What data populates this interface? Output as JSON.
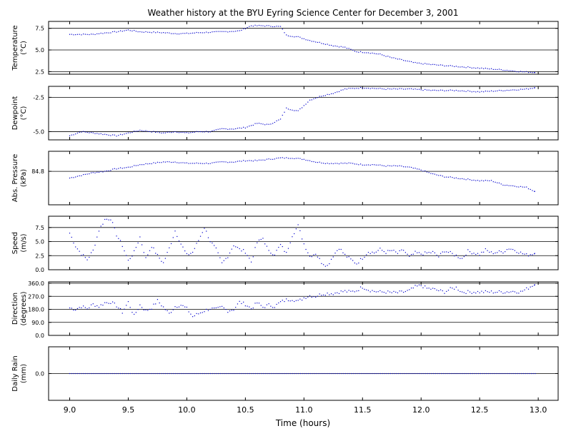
{
  "chart_data": {
    "type": "scatter",
    "title": "Weather history at the BYU Eyring Science Center for December 3, 2001",
    "xlabel": "Time (hours)",
    "xlim": [
      8.82,
      13.17
    ],
    "x_ticks": [
      9.0,
      9.5,
      10.0,
      10.5,
      11.0,
      11.5,
      12.0,
      12.5,
      13.0
    ],
    "x_tick_labels": [
      "9.0",
      "9.5",
      "10.0",
      "10.5",
      "11.0",
      "11.5",
      "12.0",
      "12.5",
      "13.0"
    ],
    "marker_color": "#0000cc",
    "grid": "horizontal lines at y ticks",
    "panels": [
      {
        "id": "temperature",
        "ylabel_lines": [
          "Temperature",
          "(°C)"
        ],
        "ylim": [
          2.2,
          8.3
        ],
        "yticks": [
          2.5,
          5.0,
          7.5
        ],
        "ytick_labels": [
          "2.5",
          "5.0",
          "7.5"
        ],
        "points": [
          [
            9.0,
            6.8
          ],
          [
            9.2,
            6.8
          ],
          [
            9.25,
            6.9
          ],
          [
            9.4,
            7.1
          ],
          [
            9.5,
            7.3
          ],
          [
            9.6,
            7.1
          ],
          [
            9.8,
            7.0
          ],
          [
            9.9,
            6.9
          ],
          [
            10.0,
            6.9
          ],
          [
            10.1,
            7.0
          ],
          [
            10.3,
            7.1
          ],
          [
            10.45,
            7.2
          ],
          [
            10.55,
            7.8
          ],
          [
            10.65,
            7.8
          ],
          [
            10.8,
            7.7
          ],
          [
            10.85,
            6.7
          ],
          [
            10.95,
            6.5
          ],
          [
            11.05,
            6.1
          ],
          [
            11.15,
            5.8
          ],
          [
            11.25,
            5.5
          ],
          [
            11.35,
            5.3
          ],
          [
            11.45,
            4.8
          ],
          [
            11.55,
            4.7
          ],
          [
            11.65,
            4.5
          ],
          [
            11.75,
            4.1
          ],
          [
            11.85,
            3.8
          ],
          [
            11.95,
            3.5
          ],
          [
            12.1,
            3.3
          ],
          [
            12.3,
            3.1
          ],
          [
            12.5,
            2.9
          ],
          [
            12.7,
            2.7
          ],
          [
            12.85,
            2.5
          ],
          [
            12.97,
            2.4
          ]
        ]
      },
      {
        "id": "dewpoint",
        "ylabel_lines": [
          "Dewpoint",
          "(°C)"
        ],
        "ylim": [
          -5.6,
          -1.7
        ],
        "yticks": [
          -5.0,
          -2.5
        ],
        "ytick_labels": [
          "-5.0",
          "-2.5"
        ],
        "points": [
          [
            9.0,
            -5.3
          ],
          [
            9.1,
            -5.0
          ],
          [
            9.2,
            -5.1
          ],
          [
            9.3,
            -5.2
          ],
          [
            9.4,
            -5.3
          ],
          [
            9.5,
            -5.1
          ],
          [
            9.6,
            -4.9
          ],
          [
            9.7,
            -5.0
          ],
          [
            9.8,
            -5.1
          ],
          [
            9.9,
            -5.0
          ],
          [
            10.0,
            -5.1
          ],
          [
            10.1,
            -5.0
          ],
          [
            10.2,
            -5.0
          ],
          [
            10.3,
            -4.8
          ],
          [
            10.4,
            -4.8
          ],
          [
            10.5,
            -4.7
          ],
          [
            10.6,
            -4.4
          ],
          [
            10.7,
            -4.5
          ],
          [
            10.8,
            -4.1
          ],
          [
            10.85,
            -3.3
          ],
          [
            10.95,
            -3.5
          ],
          [
            11.05,
            -2.7
          ],
          [
            11.15,
            -2.4
          ],
          [
            11.25,
            -2.2
          ],
          [
            11.35,
            -1.9
          ],
          [
            11.5,
            -1.8
          ],
          [
            11.7,
            -1.9
          ],
          [
            11.9,
            -1.9
          ],
          [
            12.1,
            -2.0
          ],
          [
            12.3,
            -2.0
          ],
          [
            12.5,
            -2.1
          ],
          [
            12.7,
            -2.0
          ],
          [
            12.9,
            -1.9
          ],
          [
            12.97,
            -1.8
          ]
        ]
      },
      {
        "id": "pressure",
        "ylabel_lines": [
          "Abs. Pressure",
          "(kPa)"
        ],
        "ylim": [
          84.55,
          84.95
        ],
        "yticks": [
          84.8
        ],
        "ytick_labels": [
          "84.8"
        ],
        "points": [
          [
            9.0,
            84.75
          ],
          [
            9.1,
            84.77
          ],
          [
            9.2,
            84.79
          ],
          [
            9.3,
            84.8
          ],
          [
            9.4,
            84.82
          ],
          [
            9.5,
            84.83
          ],
          [
            9.6,
            84.85
          ],
          [
            9.7,
            84.86
          ],
          [
            9.8,
            84.87
          ],
          [
            9.9,
            84.87
          ],
          [
            10.0,
            84.86
          ],
          [
            10.1,
            84.86
          ],
          [
            10.2,
            84.86
          ],
          [
            10.3,
            84.87
          ],
          [
            10.4,
            84.87
          ],
          [
            10.5,
            84.88
          ],
          [
            10.6,
            84.88
          ],
          [
            10.7,
            84.89
          ],
          [
            10.8,
            84.9
          ],
          [
            10.9,
            84.9
          ],
          [
            11.0,
            84.89
          ],
          [
            11.1,
            84.87
          ],
          [
            11.2,
            84.86
          ],
          [
            11.3,
            84.86
          ],
          [
            11.4,
            84.86
          ],
          [
            11.5,
            84.85
          ],
          [
            11.6,
            84.85
          ],
          [
            11.7,
            84.84
          ],
          [
            11.8,
            84.84
          ],
          [
            11.9,
            84.83
          ],
          [
            12.0,
            84.81
          ],
          [
            12.1,
            84.78
          ],
          [
            12.2,
            84.76
          ],
          [
            12.3,
            84.75
          ],
          [
            12.4,
            84.74
          ],
          [
            12.5,
            84.73
          ],
          [
            12.6,
            84.73
          ],
          [
            12.7,
            84.7
          ],
          [
            12.8,
            84.69
          ],
          [
            12.9,
            84.68
          ],
          [
            12.97,
            84.65
          ]
        ]
      },
      {
        "id": "speed",
        "ylabel_lines": [
          "Speed",
          "(m/s)"
        ],
        "ylim": [
          0.0,
          9.5
        ],
        "yticks": [
          0.0,
          2.5,
          5.0,
          7.5
        ],
        "ytick_labels": [
          "0.0",
          "2.5",
          "5.0",
          "7.5"
        ],
        "points": [
          [
            9.0,
            6.5
          ],
          [
            9.05,
            4.2
          ],
          [
            9.1,
            2.8
          ],
          [
            9.15,
            1.8
          ],
          [
            9.2,
            3.4
          ],
          [
            9.25,
            7.0
          ],
          [
            9.3,
            8.9
          ],
          [
            9.35,
            9.1
          ],
          [
            9.4,
            6.2
          ],
          [
            9.45,
            4.3
          ],
          [
            9.5,
            1.6
          ],
          [
            9.55,
            3.1
          ],
          [
            9.6,
            5.8
          ],
          [
            9.65,
            2.0
          ],
          [
            9.7,
            4.2
          ],
          [
            9.75,
            2.5
          ],
          [
            9.8,
            1.2
          ],
          [
            9.85,
            3.8
          ],
          [
            9.9,
            6.9
          ],
          [
            9.95,
            4.6
          ],
          [
            10.0,
            2.6
          ],
          [
            10.05,
            3.1
          ],
          [
            10.1,
            5.2
          ],
          [
            10.15,
            7.5
          ],
          [
            10.2,
            5.1
          ],
          [
            10.25,
            3.6
          ],
          [
            10.3,
            1.1
          ],
          [
            10.35,
            2.4
          ],
          [
            10.4,
            4.4
          ],
          [
            10.45,
            3.6
          ],
          [
            10.5,
            3.2
          ],
          [
            10.55,
            1.4
          ],
          [
            10.6,
            4.8
          ],
          [
            10.65,
            5.6
          ],
          [
            10.7,
            3.2
          ],
          [
            10.75,
            2.8
          ],
          [
            10.8,
            4.4
          ],
          [
            10.85,
            2.9
          ],
          [
            10.9,
            6.1
          ],
          [
            10.95,
            7.8
          ],
          [
            11.0,
            4.6
          ],
          [
            11.05,
            2.4
          ],
          [
            11.1,
            2.9
          ],
          [
            11.15,
            1.3
          ],
          [
            11.2,
            0.7
          ],
          [
            11.25,
            2.5
          ],
          [
            11.3,
            3.9
          ],
          [
            11.35,
            2.6
          ],
          [
            11.4,
            1.8
          ],
          [
            11.45,
            1.1
          ],
          [
            11.5,
            2.1
          ],
          [
            11.55,
            3.2
          ],
          [
            11.6,
            3.0
          ],
          [
            11.65,
            3.6
          ],
          [
            11.7,
            3.1
          ],
          [
            11.75,
            3.4
          ],
          [
            11.8,
            2.9
          ],
          [
            11.85,
            3.5
          ],
          [
            11.9,
            2.2
          ],
          [
            11.95,
            3.0
          ],
          [
            12.0,
            2.8
          ],
          [
            12.1,
            3.1
          ],
          [
            12.15,
            2.3
          ],
          [
            12.2,
            3.4
          ],
          [
            12.3,
            2.5
          ],
          [
            12.35,
            2.0
          ],
          [
            12.4,
            3.3
          ],
          [
            12.5,
            2.7
          ],
          [
            12.55,
            3.5
          ],
          [
            12.6,
            3.0
          ],
          [
            12.7,
            3.2
          ],
          [
            12.75,
            3.8
          ],
          [
            12.8,
            3.5
          ],
          [
            12.85,
            3.0
          ],
          [
            12.9,
            2.6
          ],
          [
            12.97,
            2.9
          ]
        ]
      },
      {
        "id": "direction",
        "ylabel_lines": [
          "Direction",
          "(degrees)"
        ],
        "ylim": [
          0.0,
          370.0
        ],
        "yticks": [
          0.0,
          90.0,
          180.0,
          270.0,
          360.0
        ],
        "ytick_labels": [
          "0.0",
          "90.0",
          "180.0",
          "270.0",
          "360.0"
        ],
        "points": [
          [
            9.0,
            190
          ],
          [
            9.05,
            180
          ],
          [
            9.1,
            200
          ],
          [
            9.15,
            185
          ],
          [
            9.2,
            215
          ],
          [
            9.25,
            200
          ],
          [
            9.3,
            225
          ],
          [
            9.35,
            230
          ],
          [
            9.4,
            205
          ],
          [
            9.45,
            160
          ],
          [
            9.5,
            230
          ],
          [
            9.55,
            135
          ],
          [
            9.6,
            210
          ],
          [
            9.65,
            170
          ],
          [
            9.7,
            190
          ],
          [
            9.75,
            240
          ],
          [
            9.8,
            195
          ],
          [
            9.85,
            150
          ],
          [
            9.9,
            200
          ],
          [
            9.95,
            210
          ],
          [
            10.0,
            185
          ],
          [
            10.05,
            130
          ],
          [
            10.1,
            150
          ],
          [
            10.15,
            170
          ],
          [
            10.2,
            185
          ],
          [
            10.25,
            180
          ],
          [
            10.3,
            195
          ],
          [
            10.35,
            170
          ],
          [
            10.4,
            180
          ],
          [
            10.45,
            230
          ],
          [
            10.5,
            215
          ],
          [
            10.55,
            185
          ],
          [
            10.6,
            225
          ],
          [
            10.65,
            195
          ],
          [
            10.7,
            210
          ],
          [
            10.75,
            200
          ],
          [
            10.8,
            230
          ],
          [
            10.85,
            245
          ],
          [
            10.9,
            250
          ],
          [
            10.95,
            235
          ],
          [
            11.0,
            260
          ],
          [
            11.05,
            275
          ],
          [
            11.1,
            270
          ],
          [
            11.15,
            285
          ],
          [
            11.2,
            290
          ],
          [
            11.25,
            290
          ],
          [
            11.3,
            300
          ],
          [
            11.35,
            305
          ],
          [
            11.4,
            300
          ],
          [
            11.45,
            310
          ],
          [
            11.5,
            335
          ],
          [
            11.55,
            315
          ],
          [
            11.6,
            305
          ],
          [
            11.65,
            300
          ],
          [
            11.7,
            300
          ],
          [
            11.75,
            295
          ],
          [
            11.8,
            295
          ],
          [
            11.85,
            300
          ],
          [
            11.9,
            310
          ],
          [
            11.95,
            335
          ],
          [
            12.0,
            345
          ],
          [
            12.05,
            325
          ],
          [
            12.1,
            320
          ],
          [
            12.15,
            310
          ],
          [
            12.2,
            300
          ],
          [
            12.25,
            320
          ],
          [
            12.3,
            330
          ],
          [
            12.35,
            300
          ],
          [
            12.4,
            300
          ],
          [
            12.5,
            300
          ],
          [
            12.6,
            300
          ],
          [
            12.7,
            300
          ],
          [
            12.8,
            305
          ],
          [
            12.85,
            300
          ],
          [
            12.9,
            320
          ],
          [
            12.95,
            345
          ],
          [
            12.97,
            350
          ]
        ]
      },
      {
        "id": "rain",
        "ylabel_lines": [
          "Daily Rain",
          "(mm)"
        ],
        "ylim": [
          -0.05,
          0.05
        ],
        "yticks": [
          0.0
        ],
        "ytick_labels": [
          "0.0"
        ],
        "points": [
          [
            9.0,
            0.0
          ],
          [
            13.0,
            0.0
          ]
        ],
        "constant_value": 0.0
      }
    ]
  }
}
